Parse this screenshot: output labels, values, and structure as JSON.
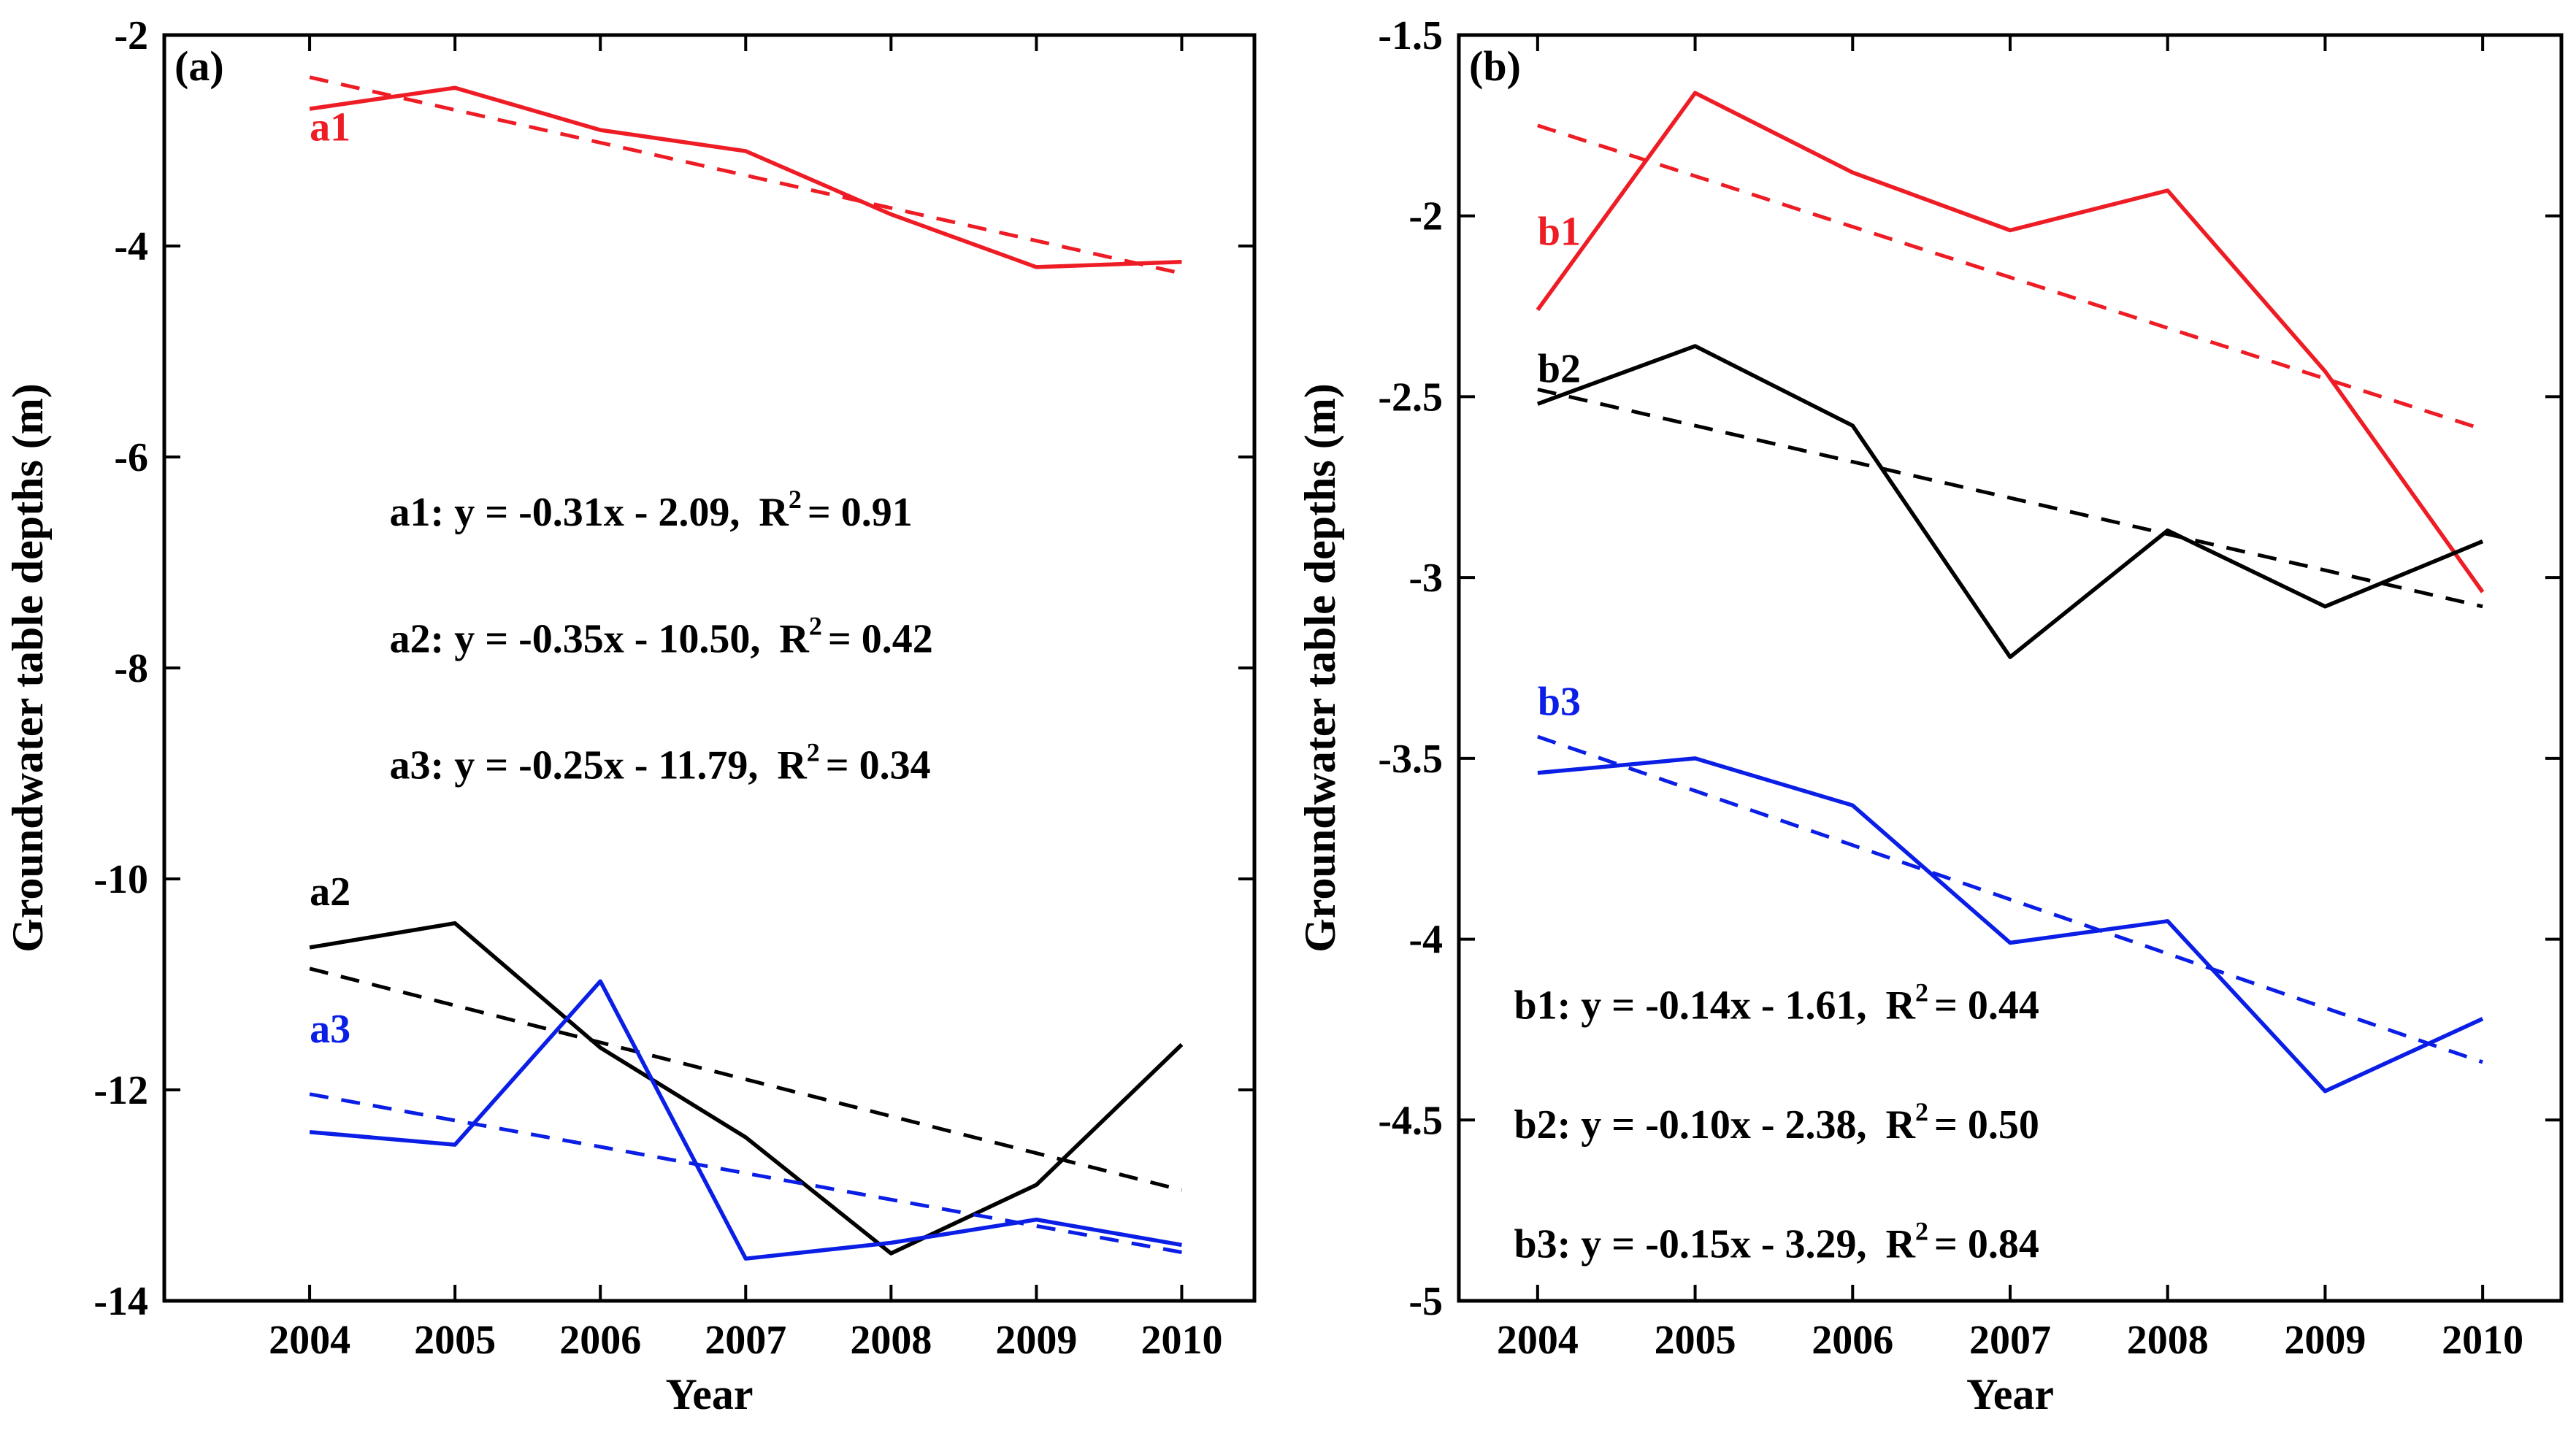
{
  "chart_data": [
    {
      "type": "line",
      "panel_label": "(a)",
      "xlabel": "Year",
      "ylabel": "Groundwater table depths (m)",
      "x": [
        2004,
        2005,
        2006,
        2007,
        2008,
        2009,
        2010
      ],
      "xticks": [
        "2004",
        "2005",
        "2006",
        "2007",
        "2008",
        "2009",
        "2010"
      ],
      "xlim": [
        2003.0,
        2010.5
      ],
      "ylim": [
        -14,
        -2
      ],
      "yticks": [
        -14,
        -12,
        -10,
        -8,
        -6,
        -4,
        -2
      ],
      "yticklabels": [
        "-14",
        "-12",
        "-10",
        "-8",
        "-6",
        "-4",
        "-2"
      ],
      "series": [
        {
          "name": "a1",
          "color": "#ee1c25",
          "values": [
            -2.7,
            -2.5,
            -2.9,
            -3.1,
            -3.7,
            -4.2,
            -4.15
          ],
          "trend": [
            -2.4,
            -2.71,
            -3.02,
            -3.33,
            -3.64,
            -3.95,
            -4.26
          ],
          "label_pos": [
            2004.0,
            -3.0
          ]
        },
        {
          "name": "a2",
          "color": "#000000",
          "values": [
            -10.65,
            -10.42,
            -11.6,
            -12.45,
            -13.55,
            -12.9,
            -11.57
          ],
          "trend": [
            -10.85,
            -11.2,
            -11.55,
            -11.9,
            -12.25,
            -12.6,
            -12.95
          ],
          "label_pos": [
            2004.0,
            -10.25
          ]
        },
        {
          "name": "a3",
          "color": "#0a1ee6",
          "values": [
            -12.4,
            -12.52,
            -10.97,
            -13.6,
            -13.45,
            -13.23,
            -13.47
          ],
          "trend": [
            -12.04,
            -12.29,
            -12.54,
            -12.79,
            -13.04,
            -13.29,
            -13.54
          ],
          "label_pos": [
            2004.0,
            -11.55
          ]
        }
      ],
      "equations": [
        {
          "lhs": "a1: y = -0.31x - 2.09,",
          "r": "R",
          "sup": "2",
          "rhs": "= 0.91"
        },
        {
          "lhs": "a2: y = -0.35x - 10.50,",
          "r": "R",
          "sup": "2",
          "rhs": "= 0.42"
        },
        {
          "lhs": "a3: y = -0.25x - 11.79,",
          "r": "R",
          "sup": "2",
          "rhs": "= 0.34"
        }
      ],
      "equation_anchor": [
        2004.55,
        -6.65
      ],
      "equation_step": -1.2
    },
    {
      "type": "line",
      "panel_label": "(b)",
      "xlabel": "Year",
      "ylabel": "Groundwater table depths (m)",
      "x": [
        2004,
        2005,
        2006,
        2007,
        2008,
        2009,
        2010
      ],
      "xticks": [
        "2004",
        "2005",
        "2006",
        "2007",
        "2008",
        "2009",
        "2010"
      ],
      "xlim": [
        2003.5,
        2010.5
      ],
      "ylim": [
        -5,
        -1.5
      ],
      "yticks": [
        -5,
        -4.5,
        -4,
        -3.5,
        -3,
        -2.5,
        -2,
        -1.5
      ],
      "yticklabels": [
        "-5",
        "-4.5",
        "-4",
        "-3.5",
        "-3",
        "-2.5",
        "-2",
        "-1.5"
      ],
      "series": [
        {
          "name": "b1",
          "color": "#ee1c25",
          "values": [
            -2.26,
            -1.66,
            -1.88,
            -2.04,
            -1.93,
            -2.43,
            -3.04
          ],
          "trend": [
            -1.75,
            -1.89,
            -2.03,
            -2.17,
            -2.31,
            -2.45,
            -2.59
          ],
          "label_pos": [
            2004.0,
            -2.08
          ]
        },
        {
          "name": "b2",
          "color": "#000000",
          "values": [
            -2.52,
            -2.36,
            -2.58,
            -3.22,
            -2.87,
            -3.08,
            -2.9
          ],
          "trend": [
            -2.48,
            -2.58,
            -2.68,
            -2.78,
            -2.88,
            -2.98,
            -3.08
          ],
          "label_pos": [
            2004.0,
            -2.46
          ]
        },
        {
          "name": "b3",
          "color": "#0a1ee6",
          "values": [
            -3.54,
            -3.5,
            -3.63,
            -4.01,
            -3.95,
            -4.42,
            -4.22
          ],
          "trend": [
            -3.44,
            -3.59,
            -3.74,
            -3.89,
            -4.04,
            -4.19,
            -4.34
          ],
          "label_pos": [
            2004.0,
            -3.38
          ]
        }
      ],
      "equations": [
        {
          "lhs": "b1: y = -0.14x - 1.61,",
          "r": "R",
          "sup": "2",
          "rhs": "= 0.44"
        },
        {
          "lhs": "b2: y = -0.10x - 2.38,",
          "r": "R",
          "sup": "2",
          "rhs": "= 0.50"
        },
        {
          "lhs": "b3: y = -0.15x - 3.29,",
          "r": "R",
          "sup": "2",
          "rhs": "= 0.84"
        }
      ],
      "equation_anchor": [
        2003.85,
        -4.22
      ],
      "equation_step": -0.33
    }
  ]
}
